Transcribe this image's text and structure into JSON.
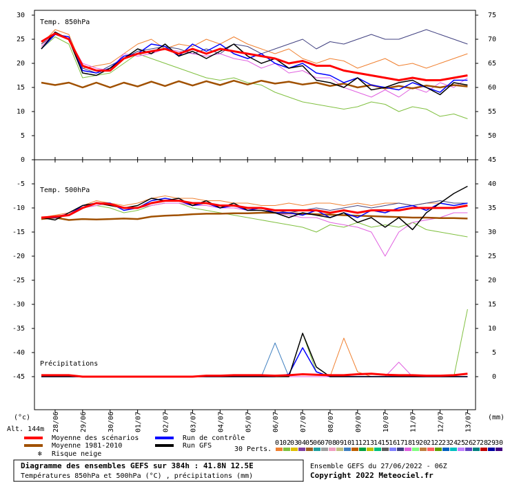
{
  "chart_data": {
    "type": "line",
    "title": "Diagramme des ensembles GEFS sur 384h : 41.8N 12.5E",
    "subtitle": "Températures 850hPa et 500hPa (°C) , précipitations (mm)",
    "run_info": "Ensemble GEFS du 27/06/2022 - 06Z",
    "copyright": "Copyright 2022 Meteociel.fr",
    "y_unit": "(°c)",
    "altitude": "Alt. 144m",
    "y2_unit": "(mm)",
    "categories": [
      null,
      "28/06",
      null,
      "29/06",
      null,
      "30/06",
      null,
      "01/07",
      null,
      "02/07",
      null,
      "03/07",
      null,
      "04/07",
      null,
      "05/07",
      null,
      "06/07",
      null,
      "07/07",
      null,
      "08/07",
      null,
      "09/07",
      null,
      "10/07",
      null,
      "11/07",
      null,
      "12/07",
      null,
      "13/07"
    ],
    "legend": [
      {
        "name": "Moyenne des scénarios",
        "color": "#ff0000"
      },
      {
        "name": "Moyenne 1981-2010",
        "color": "#a05000"
      },
      {
        "name": "Risque neige",
        "color": "#66aaee"
      },
      {
        "name": "Run de contrôle",
        "color": "#0000ff"
      },
      {
        "name": "Run GFS",
        "color": "#000000"
      }
    ],
    "perturbations": {
      "label": "30 Perts.",
      "names": [
        "01",
        "02",
        "03",
        "04",
        "05",
        "06",
        "07",
        "08",
        "09",
        "10",
        "11",
        "12",
        "13",
        "14",
        "15",
        "16",
        "17",
        "18",
        "19",
        "20",
        "21",
        "22",
        "23",
        "24",
        "25",
        "26",
        "27",
        "28",
        "29",
        "30"
      ],
      "colors": [
        "#f08030",
        "#80c040",
        "#e0c000",
        "#8040a0",
        "#a06020",
        "#20a0a0",
        "#a0a0a0",
        "#f0a0c0",
        "#c0c080",
        "#4080c0",
        "#c06000",
        "#00a040",
        "#c0c000",
        "#00c080",
        "#606060",
        "#8080ff",
        "#404080",
        "#e060e0",
        "#80ff80",
        "#c08040",
        "#ff6060",
        "#60a000",
        "#0060c0",
        "#00c0c0",
        "#c080ff",
        "#6040c0",
        "#008080",
        "#c00000",
        "#0000a0",
        "#400080"
      ]
    },
    "panels": [
      {
        "annotation": "Temp. 850hPa",
        "ylim": [
          0,
          30
        ],
        "yticks": [
          0,
          5,
          10,
          15,
          20,
          25,
          30
        ],
        "y2lim": [
          45,
          75
        ],
        "y2ticks": [
          50,
          55,
          60,
          65,
          70,
          75
        ],
        "series": [
          {
            "color": "#80c040",
            "width": 1,
            "values": [
              23,
              25.5,
              24,
              17,
              17.5,
              18,
              20,
              22,
              21,
              20,
              19,
              18,
              17,
              16.5,
              17,
              16,
              15.5,
              14,
              13,
              12,
              11.5,
              11,
              10.5,
              11,
              12,
              11.5,
              10,
              11,
              10.5,
              9,
              9.5,
              8.5
            ]
          },
          {
            "color": "#f08030",
            "width": 1,
            "values": [
              24,
              27,
              26,
              19,
              19.5,
              20,
              22,
              24,
              25,
              23,
              24,
              23.5,
              25,
              24,
              25.5,
              24,
              23,
              22,
              23,
              21,
              20,
              21,
              20.5,
              19,
              20,
              21,
              19.5,
              20,
              19,
              20,
              21,
              22
            ]
          },
          {
            "color": "#404080",
            "width": 1,
            "values": [
              24,
              26,
              25,
              19,
              18,
              19.5,
              21,
              22.5,
              23,
              23.5,
              23,
              22,
              23,
              22,
              24,
              23.5,
              22,
              23,
              24,
              25,
              23,
              24.5,
              24,
              25,
              26,
              25,
              25,
              26,
              27,
              26,
              25,
              24
            ]
          },
          {
            "color": "#e060e0",
            "width": 1,
            "values": [
              23.5,
              26.5,
              25,
              20,
              19,
              18.5,
              22,
              21.5,
              22,
              23,
              22.5,
              22,
              21.5,
              22,
              21,
              20.5,
              19,
              20,
              18,
              18.5,
              17,
              17,
              15,
              14,
              13,
              14.5,
              13,
              15,
              14,
              16,
              15,
              17
            ]
          },
          {
            "color": "#a05000",
            "width": 2.5,
            "values": [
              16,
              15.5,
              16,
              15,
              16,
              15,
              16,
              15.2,
              16.2,
              15.3,
              16.3,
              15.4,
              16.3,
              15.5,
              16.4,
              15.6,
              16.4,
              15.8,
              16.2,
              15.6,
              16,
              15.3,
              15.8,
              15,
              15.5,
              14.8,
              15.3,
              14.8,
              15.4,
              15,
              15.5,
              15.2
            ]
          },
          {
            "color": "#0000ff",
            "width": 1.5,
            "values": [
              23,
              26,
              25.5,
              18.5,
              18,
              19,
              21.5,
              22,
              24,
              23.5,
              21.5,
              24,
              22.5,
              24,
              22,
              21,
              22,
              20,
              19,
              20,
              18,
              17.5,
              16,
              17,
              15.5,
              15,
              14.5,
              16,
              15,
              14,
              16.5,
              16.5
            ]
          },
          {
            "color": "#000000",
            "width": 1.5,
            "values": [
              23,
              26.5,
              25,
              18,
              17.5,
              19,
              21,
              23,
              22,
              24,
              21.5,
              22.5,
              21,
              22.5,
              24,
              21.5,
              20,
              21,
              19,
              19.5,
              16.5,
              16,
              15,
              17,
              14.5,
              15,
              16,
              16.5,
              15,
              13.5,
              16,
              15.5
            ]
          },
          {
            "color": "#ff0000",
            "width": 3,
            "values": [
              24.5,
              26.2,
              25,
              19.5,
              18.5,
              18.5,
              21,
              22,
              22.5,
              23,
              22,
              23,
              22,
              23,
              22.5,
              22,
              21.5,
              21,
              20,
              20.5,
              19.5,
              19.5,
              18.5,
              18,
              17.5,
              17,
              16.5,
              17,
              16.5,
              16.5,
              17,
              17.5
            ]
          }
        ]
      },
      {
        "annotation": "Temp. 500hPa",
        "annotation2": "Précipitations",
        "ylim": [
          -50,
          0
        ],
        "yticks": [
          -45,
          -40,
          -35,
          -30,
          -25,
          -20,
          -15,
          -10,
          -5
        ],
        "y2lim": [
          -5,
          45
        ],
        "y2ticks": [
          0,
          5,
          10,
          15,
          20,
          25,
          30,
          35,
          40,
          45
        ],
        "series": [
          {
            "color": "#80c040",
            "width": 1,
            "values": [
              -12,
              -12,
              -11,
              -10,
              -9.5,
              -10,
              -11,
              -10.5,
              -9.5,
              -9,
              -9,
              -10,
              -10.5,
              -11,
              -11.5,
              -12,
              -12.5,
              -13,
              -13.5,
              -14,
              -15,
              -13.5,
              -14,
              -13,
              -14,
              -13.5,
              -14,
              -13,
              -14.5,
              -15,
              -15.5,
              -16
            ]
          },
          {
            "color": "#f08030",
            "width": 1,
            "values": [
              -12,
              -11.5,
              -11,
              -9.5,
              -8.5,
              -9,
              -9.5,
              -9,
              -8,
              -7.5,
              -8,
              -8,
              -8.5,
              -8.5,
              -9,
              -9,
              -9.5,
              -9.5,
              -9,
              -9.5,
              -9,
              -9,
              -9.5,
              -9,
              -9.5,
              -9,
              -9,
              -9.5,
              -9,
              -9,
              -9.5,
              -9
            ]
          },
          {
            "color": "#404080",
            "width": 1,
            "values": [
              -12,
              -12,
              -11.5,
              -10,
              -9,
              -9,
              -10,
              -10,
              -9,
              -8.5,
              -8.5,
              -9,
              -9,
              -9.5,
              -9.5,
              -10,
              -10,
              -10.5,
              -11,
              -10.5,
              -10,
              -10.5,
              -10,
              -9.5,
              -10,
              -9.5,
              -9,
              -9.5,
              -9,
              -8.5,
              -9,
              -9
            ]
          },
          {
            "color": "#e060e0",
            "width": 1,
            "values": [
              -12,
              -12,
              -11,
              -10,
              -9.5,
              -9,
              -10,
              -10,
              -9.5,
              -9,
              -9,
              -9.5,
              -9.5,
              -10,
              -10,
              -10.5,
              -10.5,
              -11,
              -11.5,
              -12,
              -12,
              -13,
              -13.5,
              -14,
              -15,
              -20,
              -15,
              -13,
              -12.5,
              -12,
              -11,
              -11
            ]
          },
          {
            "color": "#a05000",
            "width": 2.5,
            "values": [
              -12.3,
              -12,
              -12.5,
              -12.3,
              -12.4,
              -12.3,
              -12.2,
              -12.3,
              -11.8,
              -11.6,
              -11.5,
              -11.3,
              -11.2,
              -11.2,
              -11.1,
              -11.1,
              -11,
              -11,
              -11.1,
              -11.2,
              -11.3,
              -11.4,
              -11.5,
              -11.6,
              -11.7,
              -11.8,
              -11.9,
              -12,
              -12,
              -12.1,
              -12.1,
              -12.2
            ]
          },
          {
            "color": "#0000ff",
            "width": 1.5,
            "values": [
              -12,
              -12,
              -11.5,
              -9.5,
              -9,
              -9,
              -10.5,
              -10,
              -8.5,
              -8,
              -8.5,
              -9.5,
              -9,
              -10,
              -9.5,
              -10.5,
              -10,
              -11,
              -11,
              -11.5,
              -10.5,
              -12,
              -11,
              -12,
              -10.5,
              -11,
              -10,
              -9.5,
              -10.5,
              -9,
              -9.5,
              -9
            ]
          },
          {
            "color": "#000000",
            "width": 1.5,
            "values": [
              -12,
              -12.5,
              -11,
              -9.5,
              -9,
              -9.5,
              -10,
              -9.5,
              -8,
              -8.5,
              -8,
              -9.5,
              -8.5,
              -10,
              -9,
              -10.5,
              -10.5,
              -11,
              -12,
              -11,
              -11.5,
              -12,
              -11,
              -13,
              -12,
              -14,
              -12,
              -14.5,
              -11,
              -9,
              -7,
              -5.5
            ]
          },
          {
            "color": "#ff0000",
            "width": 3,
            "values": [
              -12,
              -11.8,
              -11.5,
              -10,
              -9,
              -9.2,
              -10,
              -10,
              -9,
              -8.5,
              -8.5,
              -9,
              -9,
              -9.5,
              -9.5,
              -10,
              -10,
              -10.5,
              -10.5,
              -10.5,
              -10.5,
              -11,
              -10.5,
              -11,
              -10.5,
              -10.5,
              -10.5,
              -10,
              -10,
              -10,
              -10,
              -9.5
            ]
          },
          {
            "color": "#80c040",
            "width": 1,
            "axis": "y2",
            "values": [
              0,
              0,
              0,
              0,
              0,
              0,
              0,
              0,
              0,
              0,
              0,
              0,
              0,
              0,
              0,
              0,
              0,
              0,
              0,
              9,
              1,
              0,
              0,
              0,
              0,
              0,
              0,
              0,
              0,
              0,
              0,
              14
            ]
          },
          {
            "color": "#f08030",
            "width": 1,
            "axis": "y2",
            "values": [
              0,
              0,
              0,
              0,
              0,
              0,
              0,
              0,
              0,
              0,
              0,
              0,
              0,
              0,
              0,
              0,
              0,
              0,
              0,
              0,
              0,
              0,
              8,
              1,
              0,
              0,
              0,
              0,
              0,
              0,
              0,
              0
            ]
          },
          {
            "color": "#4080c0",
            "width": 1,
            "axis": "y2",
            "values": [
              0,
              0,
              0,
              0,
              0,
              0,
              0,
              0,
              0,
              0,
              0,
              0,
              0,
              0,
              0,
              0,
              0,
              7,
              0,
              0,
              0,
              0,
              0,
              0,
              0,
              0,
              0,
              0,
              0,
              0,
              0,
              0
            ]
          },
          {
            "color": "#e060e0",
            "width": 1,
            "axis": "y2",
            "values": [
              0,
              0,
              0,
              0,
              0,
              0,
              0,
              0,
              0,
              0,
              0,
              0,
              0,
              0,
              0,
              0,
              0,
              0,
              0,
              0,
              0,
              0,
              0,
              0,
              0,
              0,
              3,
              0,
              0,
              0,
              0,
              0
            ]
          },
          {
            "color": "#0000ff",
            "width": 1.5,
            "axis": "y2",
            "values": [
              0,
              0,
              0,
              0,
              0,
              0,
              0,
              0,
              0,
              0,
              0,
              0,
              0,
              0,
              0,
              0,
              0,
              0,
              0.5,
              6,
              1,
              0,
              0,
              0,
              0,
              0,
              0,
              0,
              0,
              0,
              0,
              0
            ]
          },
          {
            "color": "#000000",
            "width": 1.5,
            "axis": "y2",
            "values": [
              0,
              0,
              0,
              0,
              0,
              0,
              0,
              0,
              0,
              0,
              0,
              0,
              0,
              0,
              0,
              0,
              0,
              0,
              0,
              9,
              2,
              0,
              0,
              0,
              0,
              0,
              0,
              0,
              0,
              0,
              0,
              0
            ]
          },
          {
            "color": "#ff0000",
            "width": 3,
            "axis": "y2",
            "values": [
              0.3,
              0.3,
              0.3,
              0,
              0,
              0,
              0,
              0,
              0,
              0,
              0,
              0,
              0.2,
              0.2,
              0.3,
              0.3,
              0.3,
              0.2,
              0.3,
              0.5,
              0.4,
              0.3,
              0.3,
              0.5,
              0.6,
              0.4,
              0.3,
              0.3,
              0.2,
              0.2,
              0.3,
              0.6
            ]
          }
        ]
      }
    ]
  }
}
